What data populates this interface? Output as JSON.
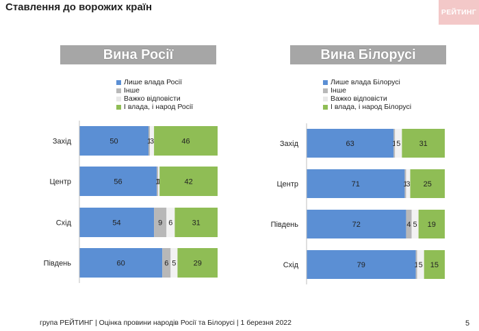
{
  "page": {
    "title": "Ставлення до ворожих країн",
    "logo_text": "РЕЙТИНГ",
    "footer": "група РЕЙТИНГ | Оцінка провини народів Росії та Білорусі | 1 березня 2022",
    "page_number": "5"
  },
  "colors": {
    "blue": "#5b8fd4",
    "gray": "#b8b8b8",
    "light": "#f2f2f2",
    "green": "#8fbd55"
  },
  "chart_data": [
    {
      "type": "bar",
      "stacked": true,
      "orientation": "horizontal",
      "title": "Вина Росії",
      "categories": [
        "Захід",
        "Центр",
        "Схід",
        "Південь"
      ],
      "series": [
        {
          "name": "Лише влада Росії",
          "values": [
            50,
            56,
            54,
            60
          ],
          "labels": [
            "50",
            "56",
            "54",
            "60"
          ]
        },
        {
          "name": "Інше",
          "values": [
            1,
            1,
            9,
            6
          ],
          "labels": [
            "1",
            "1",
            "9",
            "6"
          ]
        },
        {
          "name": "Важко відповісти",
          "values": [
            3,
            1,
            6,
            5
          ],
          "labels": [
            "3",
            "1",
            "6",
            "5"
          ]
        },
        {
          "name": "І влада, і народ Росії",
          "values": [
            46,
            42,
            31,
            29
          ],
          "labels": [
            "46",
            "42",
            "31",
            "29"
          ]
        }
      ],
      "xlim": [
        0,
        100
      ]
    },
    {
      "type": "bar",
      "stacked": true,
      "orientation": "horizontal",
      "title": "Вина Білорусі",
      "categories": [
        "Захід",
        "Центр",
        "Південь",
        "Схід"
      ],
      "series": [
        {
          "name": "Лише влада Білорусі",
          "values": [
            63,
            71,
            72,
            79
          ],
          "labels": [
            "63",
            "71",
            "72",
            "79"
          ]
        },
        {
          "name": "Інше",
          "values": [
            1,
            1,
            4,
            1
          ],
          "labels": [
            "1",
            "1",
            "4",
            "1"
          ]
        },
        {
          "name": "Важко відповісти",
          "values": [
            5,
            3,
            5,
            5
          ],
          "labels": [
            "5",
            "3",
            "5",
            "5"
          ]
        },
        {
          "name": "І влада, і народ Білорусі",
          "values": [
            31,
            25,
            19,
            15
          ],
          "labels": [
            "31",
            "25",
            "19",
            "15"
          ]
        }
      ],
      "xlim": [
        0,
        100
      ]
    }
  ]
}
